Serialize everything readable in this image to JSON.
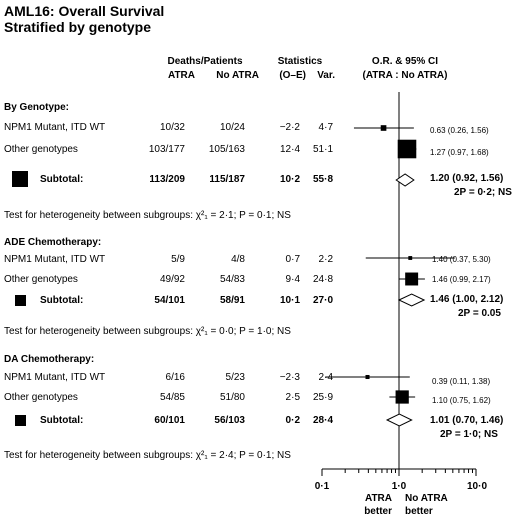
{
  "title": "AML16: Overall Survival",
  "subtitle": "Stratified by genotype",
  "headers": {
    "deaths_patients": "Deaths/Patients",
    "atra": "ATRA",
    "no_atra": "No ATRA",
    "statistics": "Statistics",
    "oe": "(O–E)",
    "var": "Var.",
    "or_ci": "O.R. & 95% CI",
    "or_ci_sub": "(ATRA : No ATRA)"
  },
  "sections": [
    {
      "heading": "By Genotype:",
      "rows": [
        {
          "label": "NPM1 Mutant, ITD WT",
          "atra": "10/32",
          "no_atra": "10/24",
          "oe": "−2·2",
          "var": "4·7",
          "ci_text": "0.63 (0.26, 1.56)"
        },
        {
          "label": "Other genotypes",
          "atra": "103/177",
          "no_atra": "105/163",
          "oe": "12·4",
          "var": "51·1",
          "ci_text": "1.27 (0.97, 1.68)"
        }
      ],
      "subtotal": {
        "label": "Subtotal:",
        "atra": "113/209",
        "no_atra": "115/187",
        "oe": "10·2",
        "var": "55·8",
        "ci_text": "1.20 (0.92, 1.56)",
        "p_text": "2P = 0·2; NS"
      },
      "heterogeneity": "Test for heterogeneity between subgroups: χ²₁ = 2·1; P = 0·1; NS"
    },
    {
      "heading": "ADE Chemotherapy:",
      "rows": [
        {
          "label": "NPM1 Mutant, ITD WT",
          "atra": "5/9",
          "no_atra": "4/8",
          "oe": "0·7",
          "var": "2·2",
          "ci_text": "1.40 (0.37, 5.30)"
        },
        {
          "label": "Other genotypes",
          "atra": "49/92",
          "no_atra": "54/83",
          "oe": "9·4",
          "var": "24·8",
          "ci_text": "1.46 (0.99, 2.17)"
        }
      ],
      "subtotal": {
        "label": "Subtotal:",
        "atra": "54/101",
        "no_atra": "58/91",
        "oe": "10·1",
        "var": "27·0",
        "ci_text": "1.46 (1.00, 2.12)",
        "p_text": "2P = 0.05"
      },
      "heterogeneity": "Test for heterogeneity between subgroups: χ²₁ = 0·0; P = 1·0; NS"
    },
    {
      "heading": "DA Chemotherapy:",
      "rows": [
        {
          "label": "NPM1 Mutant, ITD WT",
          "atra": "6/16",
          "no_atra": "5/23",
          "oe": "−2·3",
          "var": "2·4",
          "ci_text": "0.39 (0.11, 1.38)"
        },
        {
          "label": "Other genotypes",
          "atra": "54/85",
          "no_atra": "51/80",
          "oe": "2·5",
          "var": "25·9",
          "ci_text": "1.10 (0.75, 1.62)"
        }
      ],
      "subtotal": {
        "label": "Subtotal:",
        "atra": "60/101",
        "no_atra": "56/103",
        "oe": "0·2",
        "var": "28·4",
        "ci_text": "1.01 (0.70, 1.46)",
        "p_text": "2P = 1·0; NS"
      },
      "heterogeneity": "Test for heterogeneity between subgroups: χ²₁ = 2·4; P = 0·1; NS"
    }
  ],
  "axis": {
    "tick_labels": [
      "0·1",
      "1·0",
      "10·0"
    ],
    "left_label_1": "ATRA",
    "left_label_2": "better",
    "right_label_1": "No ATRA",
    "right_label_2": "better"
  },
  "chart_data": {
    "type": "forest",
    "scale": "log",
    "xlim": [
      0.1,
      10.0
    ],
    "reference_line": 1.0,
    "rows": [
      {
        "label": "NPM1 Mutant, ITD WT",
        "group": "By Genotype:",
        "kind": "study",
        "or": 0.63,
        "lo": 0.26,
        "hi": 1.56,
        "var": 4.7
      },
      {
        "label": "Other genotypes",
        "group": "By Genotype:",
        "kind": "study",
        "or": 1.27,
        "lo": 0.97,
        "hi": 1.68,
        "var": 51.1
      },
      {
        "label": "Subtotal:",
        "group": "By Genotype:",
        "kind": "subtotal",
        "or": 1.2,
        "lo": 0.92,
        "hi": 1.56,
        "var": 55.8
      },
      {
        "label": "NPM1 Mutant, ITD WT",
        "group": "ADE Chemotherapy:",
        "kind": "study",
        "or": 1.4,
        "lo": 0.37,
        "hi": 5.3,
        "var": 2.2
      },
      {
        "label": "Other genotypes",
        "group": "ADE Chemotherapy:",
        "kind": "study",
        "or": 1.46,
        "lo": 0.99,
        "hi": 2.17,
        "var": 24.8
      },
      {
        "label": "Subtotal:",
        "group": "ADE Chemotherapy:",
        "kind": "subtotal",
        "or": 1.46,
        "lo": 1.0,
        "hi": 2.12,
        "var": 27.0
      },
      {
        "label": "NPM1 Mutant, ITD WT",
        "group": "DA Chemotherapy:",
        "kind": "study",
        "or": 0.39,
        "lo": 0.11,
        "hi": 1.38,
        "var": 2.4
      },
      {
        "label": "Other genotypes",
        "group": "DA Chemotherapy:",
        "kind": "study",
        "or": 1.1,
        "lo": 0.75,
        "hi": 1.62,
        "var": 25.9
      },
      {
        "label": "Subtotal:",
        "group": "DA Chemotherapy:",
        "kind": "subtotal",
        "or": 1.01,
        "lo": 0.7,
        "hi": 1.46,
        "var": 28.4
      }
    ]
  }
}
